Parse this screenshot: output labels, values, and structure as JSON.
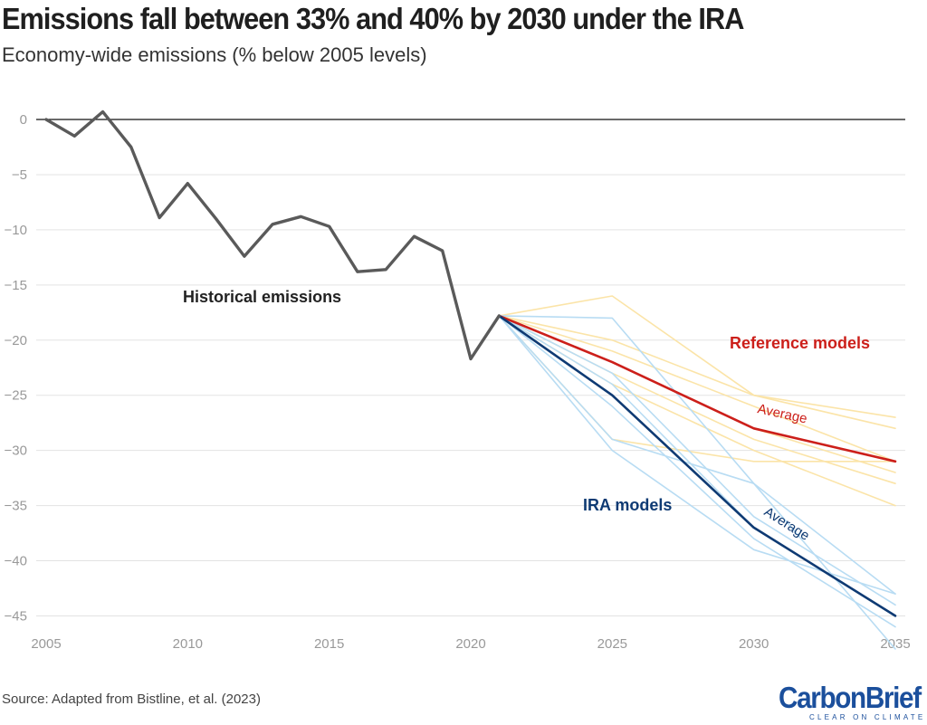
{
  "header": {
    "title": "Emissions fall between 33% and 40% by 2030 under the IRA",
    "subtitle": "Economy-wide emissions (% below 2005 levels)"
  },
  "footer": {
    "source": "Source: Adapted from Bistline, et al. (2023)"
  },
  "logo": {
    "name": "CarbonBrief",
    "tagline": "CLEAR ON CLIMATE"
  },
  "colors": {
    "historical": "#5a5a5a",
    "reference_average": "#cc1f1a",
    "reference_models": "#fbe4a8",
    "ira_average": "#0e3a73",
    "ira_models": "#b8dcf3",
    "brand": "#1b4f9c"
  },
  "chart_data": {
    "type": "line",
    "title": "Emissions fall between 33% and 40% by 2030 under the IRA",
    "subtitle": "Economy-wide emissions (% below 2005 levels)",
    "xlim": [
      2005,
      2035
    ],
    "ylim": [
      -48,
      0
    ],
    "x_ticks": [
      2005,
      2010,
      2015,
      2020,
      2025,
      2030,
      2035
    ],
    "y_ticks": [
      0,
      -5,
      -10,
      -15,
      -20,
      -25,
      -30,
      -35,
      -40,
      -45
    ],
    "grid": true,
    "annotations": [
      {
        "text": "Historical emissions",
        "series": "historical"
      },
      {
        "text": "Reference models",
        "series": "reference_average"
      },
      {
        "text": "IRA models",
        "series": "ira_average"
      },
      {
        "text": "Average",
        "series": "reference_average"
      },
      {
        "text": "Average",
        "series": "ira_average"
      }
    ],
    "historical": {
      "name": "Historical emissions",
      "x": [
        2005,
        2006,
        2007,
        2008,
        2009,
        2010,
        2011,
        2012,
        2013,
        2014,
        2015,
        2016,
        2017,
        2018,
        2019,
        2020,
        2021
      ],
      "y": [
        0,
        -1.5,
        0.7,
        -2.5,
        -8.9,
        -5.8,
        -9,
        -12.4,
        -9.5,
        -8.8,
        -9.7,
        -13.8,
        -13.6,
        -10.6,
        -11.9,
        -21.7,
        -17.8
      ]
    },
    "reference_models": [
      {
        "x": [
          2021,
          2025,
          2030,
          2035
        ],
        "y": [
          -17.8,
          -16,
          -25,
          -27
        ]
      },
      {
        "x": [
          2021,
          2025,
          2030,
          2035
        ],
        "y": [
          -17.8,
          -20,
          -25,
          -28
        ]
      },
      {
        "x": [
          2021,
          2025,
          2030,
          2035
        ],
        "y": [
          -17.8,
          -21,
          -26,
          -31
        ]
      },
      {
        "x": [
          2021,
          2025,
          2030,
          2035
        ],
        "y": [
          -17.8,
          -22,
          -28,
          -32
        ]
      },
      {
        "x": [
          2021,
          2025,
          2030,
          2035
        ],
        "y": [
          -17.8,
          -23,
          -29,
          -33
        ]
      },
      {
        "x": [
          2021,
          2025,
          2030,
          2035
        ],
        "y": [
          -17.8,
          -24,
          -30,
          -35
        ]
      },
      {
        "x": [
          2021,
          2025,
          2030,
          2035
        ],
        "y": [
          -17.8,
          -29,
          -31,
          -31
        ]
      }
    ],
    "reference_average": {
      "name": "Reference models",
      "x": [
        2021,
        2025,
        2030,
        2035
      ],
      "y": [
        -17.8,
        -22,
        -28,
        -31
      ]
    },
    "ira_models": [
      {
        "x": [
          2021,
          2025,
          2030,
          2035
        ],
        "y": [
          -17.8,
          -18,
          -33,
          -43
        ]
      },
      {
        "x": [
          2021,
          2025,
          2030,
          2035
        ],
        "y": [
          -17.8,
          -23,
          -36,
          -44
        ]
      },
      {
        "x": [
          2021,
          2025,
          2030,
          2035
        ],
        "y": [
          -17.8,
          -24,
          -37,
          -45
        ]
      },
      {
        "x": [
          2021,
          2025,
          2030,
          2035
        ],
        "y": [
          -17.8,
          -26,
          -38,
          -46
        ]
      },
      {
        "x": [
          2021,
          2025,
          2030,
          2035
        ],
        "y": [
          -17.8,
          -29,
          -33,
          -48
        ]
      },
      {
        "x": [
          2021,
          2025,
          2030,
          2035
        ],
        "y": [
          -17.8,
          -30,
          -39,
          -43
        ]
      }
    ],
    "ira_average": {
      "name": "IRA models",
      "x": [
        2021,
        2025,
        2030,
        2035
      ],
      "y": [
        -17.8,
        -25,
        -37,
        -45
      ]
    }
  }
}
